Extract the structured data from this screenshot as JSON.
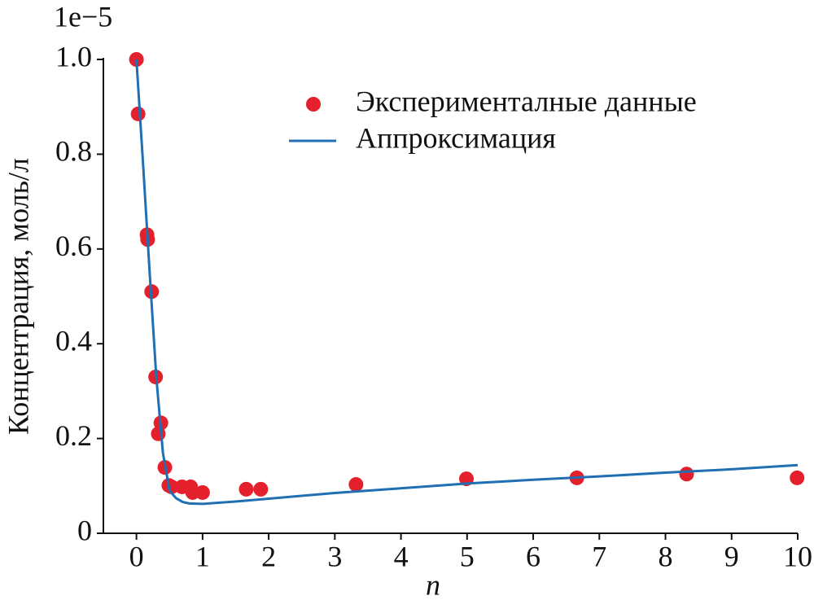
{
  "chart_data": {
    "type": "scatter",
    "y_offset_label": "1e−5",
    "xlabel": "n",
    "ylabel": "Концентрация, моль/л",
    "xlim": [
      -0.5,
      10
    ],
    "ylim": [
      0,
      1.0
    ],
    "xticks": [
      0,
      1,
      2,
      3,
      4,
      5,
      6,
      7,
      8,
      9,
      10
    ],
    "yticks": [
      0,
      0.2,
      0.4,
      0.6,
      {
        "value": 0.8,
        "label": "0.8"
      },
      {
        "value": 1,
        "label": "1.0"
      }
    ],
    "legend": "upper right",
    "series": [
      {
        "name": "Эксперименталные данные",
        "kind": "scatter",
        "color": "#e3202b",
        "x": [
          0,
          0.025,
          0.16,
          0.17,
          0.23,
          0.29,
          0.33,
          0.37,
          0.43,
          0.49,
          0.53,
          0.69,
          0.82,
          0.85,
          1.0,
          1.66,
          1.88,
          3.32,
          4.99,
          6.66,
          8.32,
          9.99
        ],
        "values": [
          1.0,
          0.885,
          0.63,
          0.62,
          0.51,
          0.33,
          0.21,
          0.233,
          0.139,
          0.101,
          0.098,
          0.098,
          0.098,
          0.086,
          0.086,
          0.093,
          0.093,
          0.103,
          0.115,
          0.117,
          0.125,
          0.117
        ]
      },
      {
        "name": "Аппроксимация",
        "kind": "line",
        "color": "#1f6fb2",
        "x": [
          0,
          0.1,
          0.2,
          0.3,
          0.4,
          0.5,
          0.6,
          0.7,
          0.8,
          1.0,
          1.5,
          2,
          3,
          4,
          5,
          6,
          7,
          8,
          9,
          10
        ],
        "values": [
          1.0,
          0.78,
          0.55,
          0.33,
          0.17,
          0.09,
          0.074,
          0.066,
          0.063,
          0.062,
          0.067,
          0.073,
          0.085,
          0.095,
          0.105,
          0.113,
          0.12,
          0.128,
          0.135,
          0.144
        ]
      }
    ]
  }
}
